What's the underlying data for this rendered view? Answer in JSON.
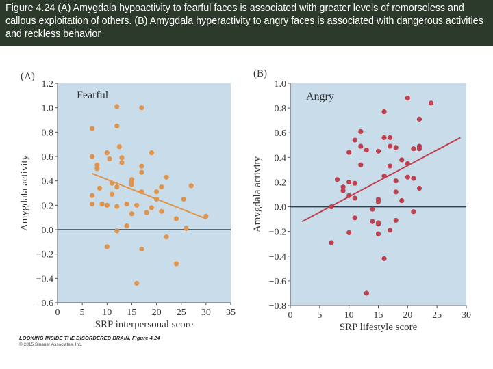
{
  "header": {
    "caption": "Figure 4.24  (A) Amygdala hypoactivity to fearful faces is associated with greater levels of remorseless and callous exploitation of others. (B) Amygdala hyperactivity to angry faces is associated with dangerous activities and reckless behavior"
  },
  "footer": {
    "title": "LOOKING INSIDE THE DISORDERED BRAIN, Figure 4.24",
    "copyright": "© 2015 Sinauer Associates, Inc."
  },
  "colors": {
    "header_bg": "#2b3a2b",
    "plot_bg": "#c9dcea",
    "fearful_points": "#e0934a",
    "fearful_line": "#e0934a",
    "angry_points": "#c0404f",
    "angry_line": "#c0404f",
    "zero_line": "#2c3e50"
  },
  "chart_data": [
    {
      "type": "scatter",
      "panel_label": "(A)",
      "inset_label": "Fearful",
      "xlabel": "SRP interpersonal score",
      "ylabel": "Amygdala activity",
      "xlim": [
        0,
        35
      ],
      "ylim": [
        -0.6,
        1.2
      ],
      "xticks": [
        0,
        5,
        10,
        15,
        20,
        25,
        30,
        35
      ],
      "yticks": [
        -0.6,
        -0.4,
        -0.2,
        0.0,
        0.2,
        0.4,
        0.6,
        0.8,
        1.0,
        1.2
      ],
      "ytick_labels": [
        "−0.6",
        "−0.4",
        "−0.2",
        "0.0",
        "0.2",
        "0.4",
        "0.6",
        "0.8",
        "1.0",
        "1.2"
      ],
      "reference_line_y": 0.0,
      "trend_line": [
        [
          7,
          0.46
        ],
        [
          30,
          0.09
        ]
      ],
      "points": [
        [
          7,
          0.83
        ],
        [
          7,
          0.6
        ],
        [
          7,
          0.28
        ],
        [
          7,
          0.21
        ],
        [
          8,
          0.53
        ],
        [
          8,
          0.5
        ],
        [
          8.5,
          0.34
        ],
        [
          9,
          0.21
        ],
        [
          10,
          0.63
        ],
        [
          10,
          0.2
        ],
        [
          10,
          -0.14
        ],
        [
          10.5,
          0.58
        ],
        [
          11,
          0.38
        ],
        [
          11,
          0.29
        ],
        [
          12,
          1.01
        ],
        [
          12,
          0.85
        ],
        [
          12,
          0.35
        ],
        [
          12,
          0.19
        ],
        [
          12,
          -0.01
        ],
        [
          12.5,
          0.68
        ],
        [
          13,
          0.59
        ],
        [
          13,
          0.55
        ],
        [
          14,
          0.21
        ],
        [
          14,
          0.03
        ],
        [
          15,
          0.41
        ],
        [
          15,
          0.39
        ],
        [
          15,
          0.37
        ],
        [
          15,
          0.13
        ],
        [
          16,
          0.2
        ],
        [
          16,
          -0.44
        ],
        [
          17,
          1.0
        ],
        [
          17,
          0.52
        ],
        [
          17,
          0.47
        ],
        [
          17,
          0.31
        ],
        [
          17,
          -0.16
        ],
        [
          18,
          0.14
        ],
        [
          19,
          0.63
        ],
        [
          19,
          0.18
        ],
        [
          20,
          0.31
        ],
        [
          20,
          0.25
        ],
        [
          21,
          0.35
        ],
        [
          21,
          0.15
        ],
        [
          22,
          0.43
        ],
        [
          22,
          -0.06
        ],
        [
          24,
          0.09
        ],
        [
          24,
          -0.28
        ],
        [
          25.5,
          0.25
        ],
        [
          26,
          0.01
        ],
        [
          27,
          0.36
        ],
        [
          30,
          0.11
        ]
      ]
    },
    {
      "type": "scatter",
      "panel_label": "(B)",
      "inset_label": "Angry",
      "xlabel": "SRP lifestyle score",
      "ylabel": "Amygdala activity",
      "xlim": [
        0,
        30
      ],
      "ylim": [
        -0.8,
        1.0
      ],
      "xticks": [
        0,
        5,
        10,
        15,
        20,
        25,
        30
      ],
      "yticks": [
        -0.8,
        -0.6,
        -0.4,
        -0.2,
        0.0,
        0.2,
        0.4,
        0.6,
        0.8,
        1.0
      ],
      "ytick_labels": [
        "−0.8",
        "−0.6",
        "−0.4",
        "−0.2",
        "0.0",
        "0.2",
        "0.4",
        "0.6",
        "0.8",
        "1.0"
      ],
      "reference_line_y": 0.0,
      "trend_line": [
        [
          2,
          -0.12
        ],
        [
          29,
          0.56
        ]
      ],
      "points": [
        [
          7,
          -0.29
        ],
        [
          7,
          0.0
        ],
        [
          8,
          0.22
        ],
        [
          9,
          0.16
        ],
        [
          9,
          0.13
        ],
        [
          10,
          0.44
        ],
        [
          10,
          0.2
        ],
        [
          10,
          0.09
        ],
        [
          10,
          -0.21
        ],
        [
          11,
          0.54
        ],
        [
          11,
          0.19
        ],
        [
          11,
          0.07
        ],
        [
          11,
          -0.09
        ],
        [
          12,
          0.61
        ],
        [
          12,
          0.49
        ],
        [
          12,
          0.34
        ],
        [
          13,
          0.46
        ],
        [
          13,
          -0.7
        ],
        [
          14,
          -0.02
        ],
        [
          14,
          -0.12
        ],
        [
          15,
          0.45
        ],
        [
          15,
          0.06
        ],
        [
          15,
          0.04
        ],
        [
          15,
          -0.13
        ],
        [
          15,
          -0.14
        ],
        [
          15,
          -0.22
        ],
        [
          16,
          0.77
        ],
        [
          16,
          0.56
        ],
        [
          16,
          0.25
        ],
        [
          16,
          -0.42
        ],
        [
          17,
          0.56
        ],
        [
          17,
          0.49
        ],
        [
          17,
          0.33
        ],
        [
          17,
          -0.19
        ],
        [
          18,
          0.48
        ],
        [
          18,
          0.21
        ],
        [
          18,
          0.12
        ],
        [
          18,
          -0.11
        ],
        [
          19,
          0.38
        ],
        [
          19,
          0.05
        ],
        [
          20,
          0.88
        ],
        [
          20,
          0.35
        ],
        [
          20,
          0.24
        ],
        [
          21,
          0.47
        ],
        [
          21,
          0.23
        ],
        [
          21,
          -0.04
        ],
        [
          22,
          0.71
        ],
        [
          22,
          0.49
        ],
        [
          22,
          0.47
        ],
        [
          22,
          0.15
        ],
        [
          24,
          0.84
        ]
      ]
    }
  ]
}
